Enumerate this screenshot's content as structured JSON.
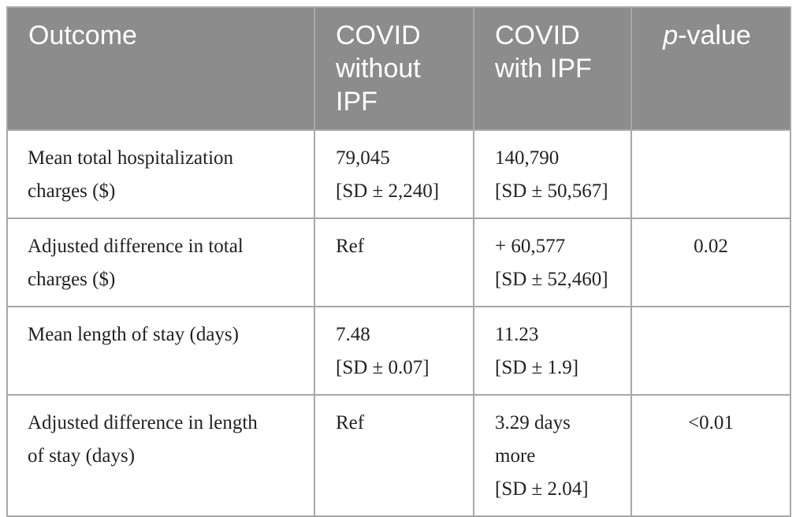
{
  "table": {
    "header": [
      "Outcome",
      "COVID without IPF",
      "COVID with IPF",
      {
        "italic": "p",
        "rest": "-value"
      }
    ],
    "rows": [
      [
        [
          "Mean total hospitalization",
          "charges ($)"
        ],
        [
          "79,045",
          "[SD ± 2,240]"
        ],
        [
          "140,790",
          "[SD ± 50,567]"
        ],
        []
      ],
      [
        [
          "Adjusted difference in total",
          "charges ($)"
        ],
        [
          "Ref"
        ],
        [
          "+ 60,577",
          "[SD ± 52,460]"
        ],
        [
          "0.02"
        ]
      ],
      [
        [
          "Mean length of stay (days)"
        ],
        [
          "7.48",
          "[SD ± 0.07]"
        ],
        [
          "11.23",
          "[SD ± 1.9]"
        ],
        []
      ],
      [
        [
          "Adjusted difference in length",
          "of stay (days)"
        ],
        [
          "Ref"
        ],
        [
          "3.29 days",
          "more",
          "[SD ± 2.04]"
        ],
        [
          "<0.01"
        ]
      ]
    ]
  }
}
